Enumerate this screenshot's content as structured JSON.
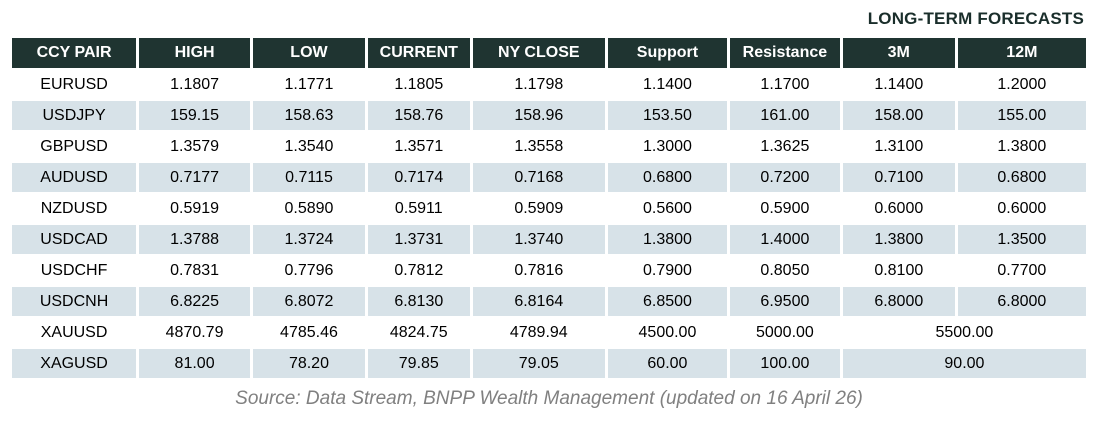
{
  "title": "LONG-TERM FORECASTS",
  "source_note": "Source: Data Stream, BNPP Wealth Management (updated on 16 April 26)",
  "colors": {
    "header_bg": "#1f3431",
    "header_text": "#ffffff",
    "row_alt_bg": "#d7e2e8",
    "source_text": "#808080"
  },
  "chart_data": {
    "type": "table",
    "title": "LONG-TERM FORECASTS",
    "columns": [
      "CCY PAIR",
      "HIGH",
      "LOW",
      "CURRENT",
      "NY CLOSE",
      "Support",
      "Resistance",
      "3M",
      "12M"
    ],
    "rows": [
      {
        "pair": "EURUSD",
        "values": [
          "1.1807",
          "1.1771",
          "1.1805",
          "1.1798",
          "1.1400",
          "1.1700",
          "1.1400",
          "1.2000"
        ]
      },
      {
        "pair": "USDJPY",
        "values": [
          "159.15",
          "158.63",
          "158.76",
          "158.96",
          "153.50",
          "161.00",
          "158.00",
          "155.00"
        ]
      },
      {
        "pair": "GBPUSD",
        "values": [
          "1.3579",
          "1.3540",
          "1.3571",
          "1.3558",
          "1.3000",
          "1.3625",
          "1.3100",
          "1.3800"
        ]
      },
      {
        "pair": "AUDUSD",
        "values": [
          "0.7177",
          "0.7115",
          "0.7174",
          "0.7168",
          "0.6800",
          "0.7200",
          "0.7100",
          "0.6800"
        ]
      },
      {
        "pair": "NZDUSD",
        "values": [
          "0.5919",
          "0.5890",
          "0.5911",
          "0.5909",
          "0.5600",
          "0.5900",
          "0.6000",
          "0.6000"
        ]
      },
      {
        "pair": "USDCAD",
        "values": [
          "1.3788",
          "1.3724",
          "1.3731",
          "1.3740",
          "1.3800",
          "1.4000",
          "1.3800",
          "1.3500"
        ]
      },
      {
        "pair": "USDCHF",
        "values": [
          "0.7831",
          "0.7796",
          "0.7812",
          "0.7816",
          "0.7900",
          "0.8050",
          "0.8100",
          "0.7700"
        ]
      },
      {
        "pair": "USDCNH",
        "values": [
          "6.8225",
          "6.8072",
          "6.8130",
          "6.8164",
          "6.8500",
          "6.9500",
          "6.8000",
          "6.8000"
        ]
      },
      {
        "pair": "XAUUSD",
        "values": [
          "4870.79",
          "4785.46",
          "4824.75",
          "4789.94",
          "4500.00",
          "5000.00"
        ],
        "merged_3m_12m": "5500.00"
      },
      {
        "pair": "XAGUSD",
        "values": [
          "81.00",
          "78.20",
          "79.85",
          "79.05",
          "60.00",
          "100.00"
        ],
        "merged_3m_12m": "90.00"
      }
    ]
  }
}
